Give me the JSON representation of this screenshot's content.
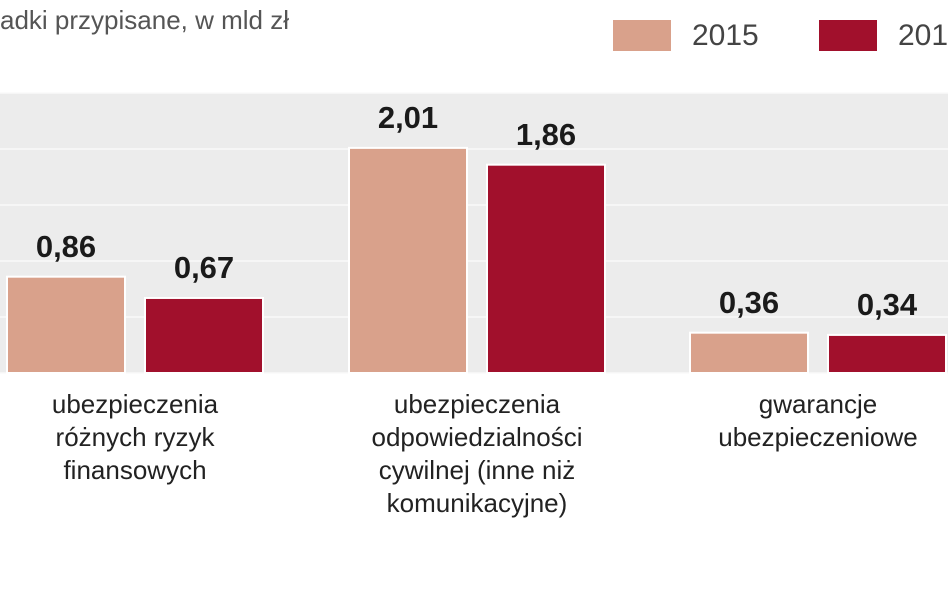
{
  "chart_data": {
    "type": "bar",
    "title": "adki przypisane, w mld zł",
    "categories": [
      [
        "ubezpieczenia",
        "różnych ryzyk",
        "finansowych"
      ],
      [
        "ubezpieczenia",
        "odpowiedzialności",
        "cywilnej (inne niż",
        "komunikacyjne)"
      ],
      [
        "gwarancje",
        "ubezpieczeniowe"
      ]
    ],
    "series": [
      {
        "name": "2015",
        "color": "#d9a18b",
        "values": [
          0.86,
          2.01,
          0.36
        ],
        "value_labels": [
          "0,86",
          "2,01",
          "0,36"
        ]
      },
      {
        "name": "201",
        "color": "#a1102c",
        "values": [
          0.67,
          1.86,
          0.34
        ],
        "value_labels": [
          "0,67",
          "1,86",
          "0,34"
        ]
      }
    ],
    "ylim": [
      0,
      2.5
    ],
    "yticks": [
      0,
      0.5,
      1,
      1.5,
      2,
      2.5
    ],
    "grid": true
  }
}
